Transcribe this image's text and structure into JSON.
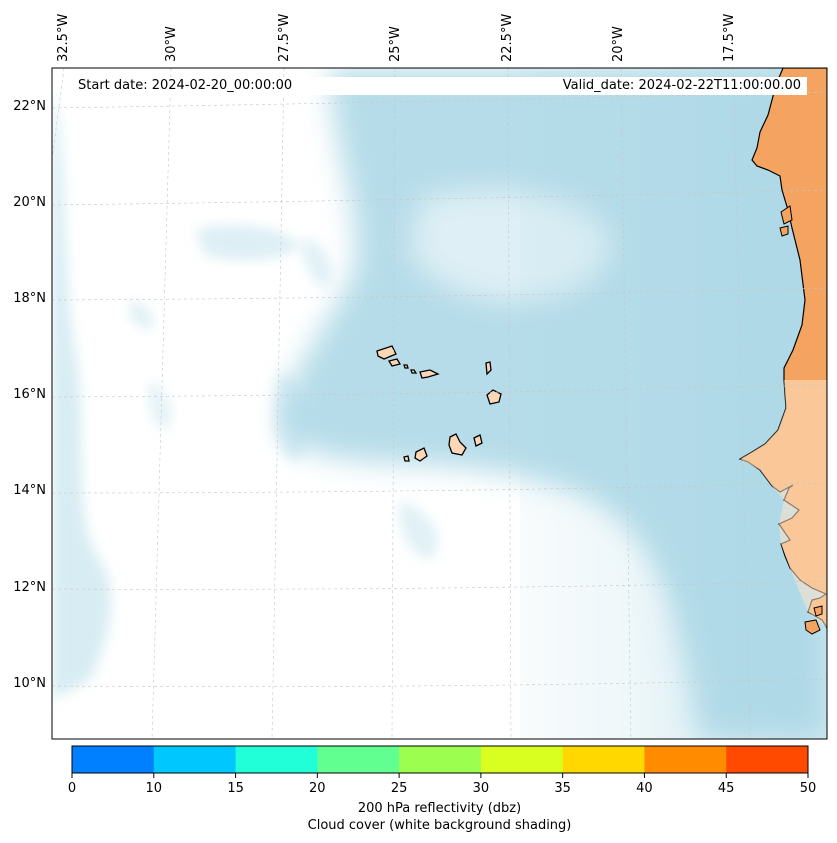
{
  "header": {
    "start_date": "Start date: 2024-02-20_00:00:00",
    "valid_date": "Valid_date: 2024-02-22T11:00:00.00"
  },
  "axes": {
    "longitude_labels": [
      "32.5°W",
      "30°W",
      "27.5°W",
      "25°W",
      "22.5°W",
      "20°W",
      "17.5°W"
    ],
    "latitude_labels": [
      "22°N",
      "20°N",
      "18°N",
      "16°N",
      "14°N",
      "12°N",
      "10°N"
    ]
  },
  "map": {
    "extent": {
      "lon_min": -32.5,
      "lon_max": -15.3,
      "lat_min": 8.9,
      "lat_max": 22.8
    },
    "gridlines": true,
    "land_color": "#f4a460",
    "cloud_color": "#a9d6e5",
    "coastline_color": "#000000"
  },
  "colorbar": {
    "ticks": [
      "0",
      "10",
      "15",
      "20",
      "25",
      "30",
      "35",
      "40",
      "45",
      "50"
    ],
    "colors": [
      "#0080ff",
      "#00c8ff",
      "#20ffd8",
      "#60ff90",
      "#9cff50",
      "#d8ff20",
      "#ffd800",
      "#ff8c00",
      "#ff4a00"
    ],
    "label": "200 hPa reflectivity (dbz)",
    "sublabel": "Cloud cover (white background shading)"
  }
}
